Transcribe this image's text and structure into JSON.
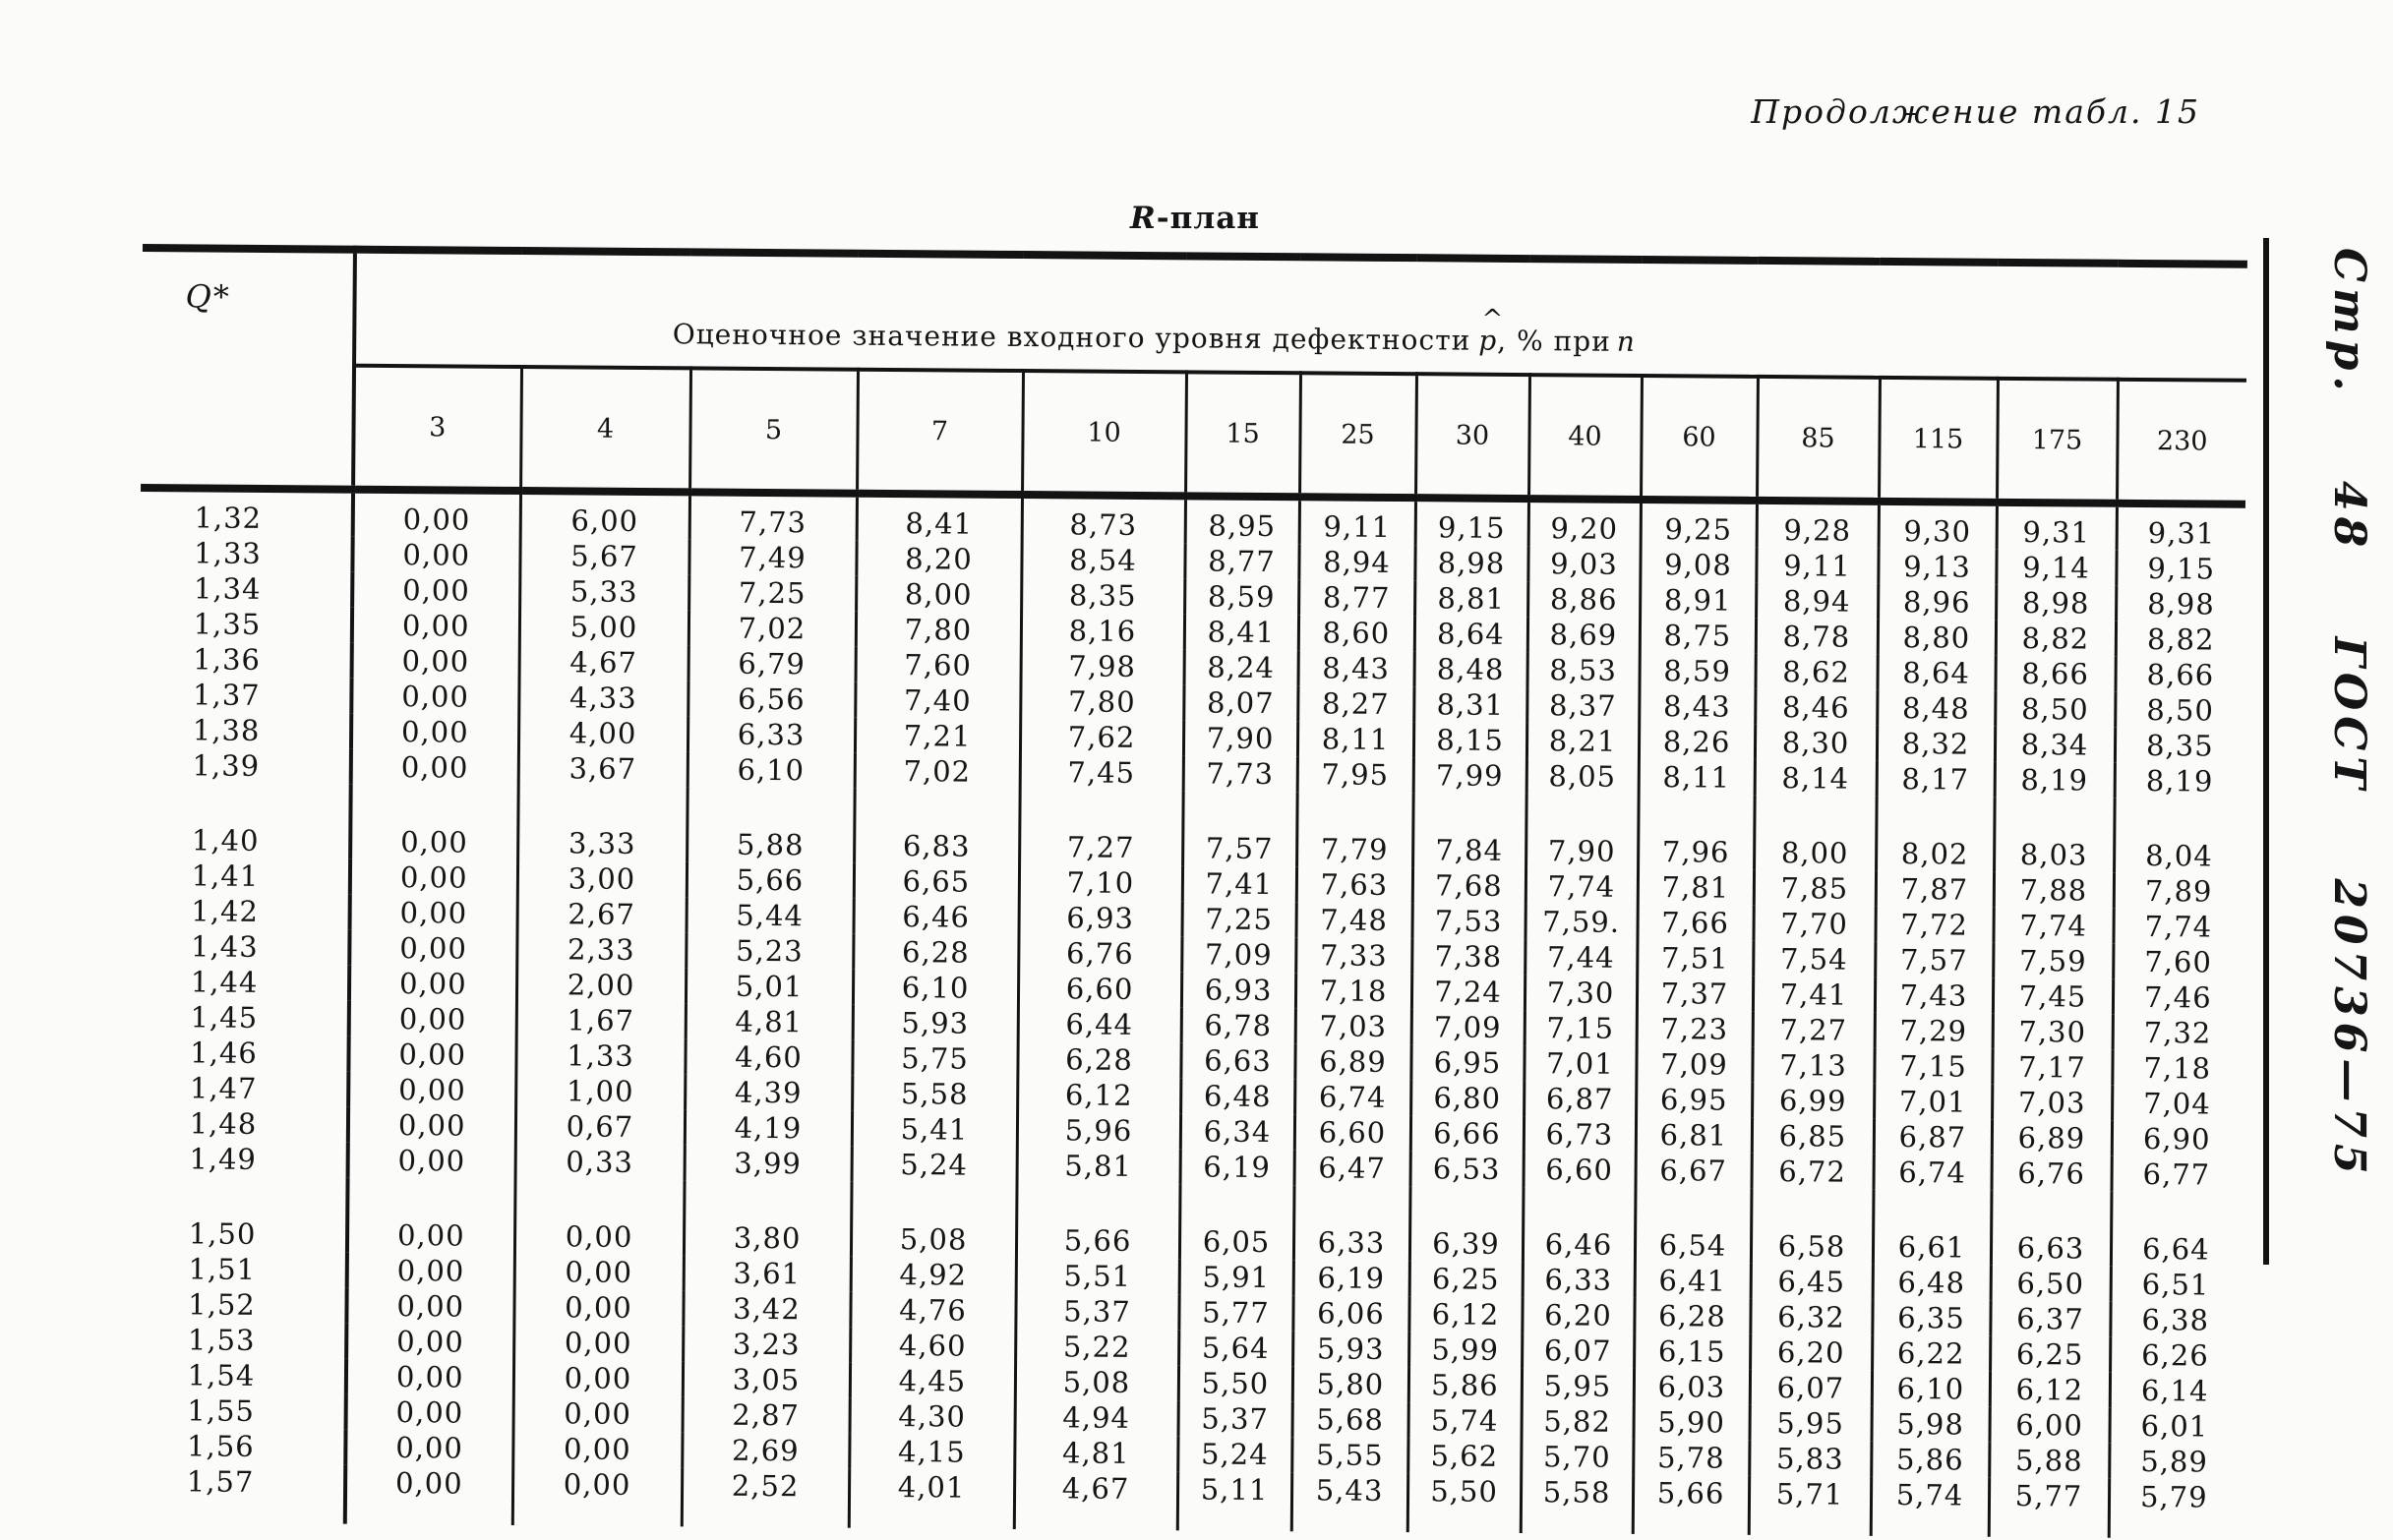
{
  "page": {
    "continuation_label": "Продолжение табл. 15",
    "side_label": "Стр. 48 ГОСТ 20736—75",
    "title_symbol": "R",
    "title_suffix": "-план",
    "ink_color": "#131313",
    "paper_color": "#fbfbf9"
  },
  "table": {
    "q_header": "Q*",
    "span_header": {
      "prefix": "Оценочное значение входного уровня дефектности",
      "p_symbol": "p",
      "hat": "^",
      "suffix": ", % при",
      "n_symbol": "n"
    },
    "n_columns": [
      "3",
      "4",
      "5",
      "7",
      "10",
      "15",
      "25",
      "30",
      "40",
      "60",
      "85",
      "115",
      "175",
      "230"
    ],
    "blocks": [
      {
        "rows": [
          {
            "q": "1,32",
            "values": [
              "0,00",
              "6,00",
              "7,73",
              "8,41",
              "8,73",
              "8,95",
              "9,11",
              "9,15",
              "9,20",
              "9,25",
              "9,28",
              "9,30",
              "9,31",
              "9,31"
            ]
          },
          {
            "q": "1,33",
            "values": [
              "0,00",
              "5,67",
              "7,49",
              "8,20",
              "8,54",
              "8,77",
              "8,94",
              "8,98",
              "9,03",
              "9,08",
              "9,11",
              "9,13",
              "9,14",
              "9,15"
            ]
          },
          {
            "q": "1,34",
            "values": [
              "0,00",
              "5,33",
              "7,25",
              "8,00",
              "8,35",
              "8,59",
              "8,77",
              "8,81",
              "8,86",
              "8,91",
              "8,94",
              "8,96",
              "8,98",
              "8,98"
            ]
          },
          {
            "q": "1,35",
            "values": [
              "0,00",
              "5,00",
              "7,02",
              "7,80",
              "8,16",
              "8,41",
              "8,60",
              "8,64",
              "8,69",
              "8,75",
              "8,78",
              "8,80",
              "8,82",
              "8,82"
            ]
          },
          {
            "q": "1,36",
            "values": [
              "0,00",
              "4,67",
              "6,79",
              "7,60",
              "7,98",
              "8,24",
              "8,43",
              "8,48",
              "8,53",
              "8,59",
              "8,62",
              "8,64",
              "8,66",
              "8,66"
            ]
          },
          {
            "q": "1,37",
            "values": [
              "0,00",
              "4,33",
              "6,56",
              "7,40",
              "7,80",
              "8,07",
              "8,27",
              "8,31",
              "8,37",
              "8,43",
              "8,46",
              "8,48",
              "8,50",
              "8,50"
            ]
          },
          {
            "q": "1,38",
            "values": [
              "0,00",
              "4,00",
              "6,33",
              "7,21",
              "7,62",
              "7,90",
              "8,11",
              "8,15",
              "8,21",
              "8,26",
              "8,30",
              "8,32",
              "8,34",
              "8,35"
            ]
          },
          {
            "q": "1,39",
            "values": [
              "0,00",
              "3,67",
              "6,10",
              "7,02",
              "7,45",
              "7,73",
              "7,95",
              "7,99",
              "8,05",
              "8,11",
              "8,14",
              "8,17",
              "8,19",
              "8,19"
            ]
          }
        ]
      },
      {
        "rows": [
          {
            "q": "1,40",
            "values": [
              "0,00",
              "3,33",
              "5,88",
              "6,83",
              "7,27",
              "7,57",
              "7,79",
              "7,84",
              "7,90",
              "7,96",
              "8,00",
              "8,02",
              "8,03",
              "8,04"
            ]
          },
          {
            "q": "1,41",
            "values": [
              "0,00",
              "3,00",
              "5,66",
              "6,65",
              "7,10",
              "7,41",
              "7,63",
              "7,68",
              "7,74",
              "7,81",
              "7,85",
              "7,87",
              "7,88",
              "7,89"
            ]
          },
          {
            "q": "1,42",
            "values": [
              "0,00",
              "2,67",
              "5,44",
              "6,46",
              "6,93",
              "7,25",
              "7,48",
              "7,53",
              "7,59.",
              "7,66",
              "7,70",
              "7,72",
              "7,74",
              "7,74"
            ]
          },
          {
            "q": "1,43",
            "values": [
              "0,00",
              "2,33",
              "5,23",
              "6,28",
              "6,76",
              "7,09",
              "7,33",
              "7,38",
              "7,44",
              "7,51",
              "7,54",
              "7,57",
              "7,59",
              "7,60"
            ]
          },
          {
            "q": "1,44",
            "values": [
              "0,00",
              "2,00",
              "5,01",
              "6,10",
              "6,60",
              "6,93",
              "7,18",
              "7,24",
              "7,30",
              "7,37",
              "7,41",
              "7,43",
              "7,45",
              "7,46"
            ]
          },
          {
            "q": "1,45",
            "values": [
              "0,00",
              "1,67",
              "4,81",
              "5,93",
              "6,44",
              "6,78",
              "7,03",
              "7,09",
              "7,15",
              "7,23",
              "7,27",
              "7,29",
              "7,30",
              "7,32"
            ]
          },
          {
            "q": "1,46",
            "values": [
              "0,00",
              "1,33",
              "4,60",
              "5,75",
              "6,28",
              "6,63",
              "6,89",
              "6,95",
              "7,01",
              "7,09",
              "7,13",
              "7,15",
              "7,17",
              "7,18"
            ]
          },
          {
            "q": "1,47",
            "values": [
              "0,00",
              "1,00",
              "4,39",
              "5,58",
              "6,12",
              "6,48",
              "6,74",
              "6,80",
              "6,87",
              "6,95",
              "6,99",
              "7,01",
              "7,03",
              "7,04"
            ]
          },
          {
            "q": "1,48",
            "values": [
              "0,00",
              "0,67",
              "4,19",
              "5,41",
              "5,96",
              "6,34",
              "6,60",
              "6,66",
              "6,73",
              "6,81",
              "6,85",
              "6,87",
              "6,89",
              "6,90"
            ]
          },
          {
            "q": "1,49",
            "values": [
              "0,00",
              "0,33",
              "3,99",
              "5,24",
              "5,81",
              "6,19",
              "6,47",
              "6,53",
              "6,60",
              "6,67",
              "6,72",
              "6,74",
              "6,76",
              "6,77"
            ]
          }
        ]
      },
      {
        "rows": [
          {
            "q": "1,50",
            "values": [
              "0,00",
              "0,00",
              "3,80",
              "5,08",
              "5,66",
              "6,05",
              "6,33",
              "6,39",
              "6,46",
              "6,54",
              "6,58",
              "6,61",
              "6,63",
              "6,64"
            ]
          },
          {
            "q": "1,51",
            "values": [
              "0,00",
              "0,00",
              "3,61",
              "4,92",
              "5,51",
              "5,91",
              "6,19",
              "6,25",
              "6,33",
              "6,41",
              "6,45",
              "6,48",
              "6,50",
              "6,51"
            ]
          },
          {
            "q": "1,52",
            "values": [
              "0,00",
              "0,00",
              "3,42",
              "4,76",
              "5,37",
              "5,77",
              "6,06",
              "6,12",
              "6,20",
              "6,28",
              "6,32",
              "6,35",
              "6,37",
              "6,38"
            ]
          },
          {
            "q": "1,53",
            "values": [
              "0,00",
              "0,00",
              "3,23",
              "4,60",
              "5,22",
              "5,64",
              "5,93",
              "5,99",
              "6,07",
              "6,15",
              "6,20",
              "6,22",
              "6,25",
              "6,26"
            ]
          },
          {
            "q": "1,54",
            "values": [
              "0,00",
              "0,00",
              "3,05",
              "4,45",
              "5,08",
              "5,50",
              "5,80",
              "5,86",
              "5,95",
              "6,03",
              "6,07",
              "6,10",
              "6,12",
              "6,14"
            ]
          },
          {
            "q": "1,55",
            "values": [
              "0,00",
              "0,00",
              "2,87",
              "4,30",
              "4,94",
              "5,37",
              "5,68",
              "5,74",
              "5,82",
              "5,90",
              "5,95",
              "5,98",
              "6,00",
              "6,01"
            ]
          },
          {
            "q": "1,56",
            "values": [
              "0,00",
              "0,00",
              "2,69",
              "4,15",
              "4,81",
              "5,24",
              "5,55",
              "5,62",
              "5,70",
              "5,78",
              "5,83",
              "5,86",
              "5,88",
              "5,89"
            ]
          },
          {
            "q": "1,57",
            "values": [
              "0,00",
              "0,00",
              "2,52",
              "4,01",
              "4,67",
              "5,11",
              "5,43",
              "5,50",
              "5,58",
              "5,66",
              "5,71",
              "5,74",
              "5,77",
              "5,79"
            ]
          }
        ]
      }
    ]
  }
}
